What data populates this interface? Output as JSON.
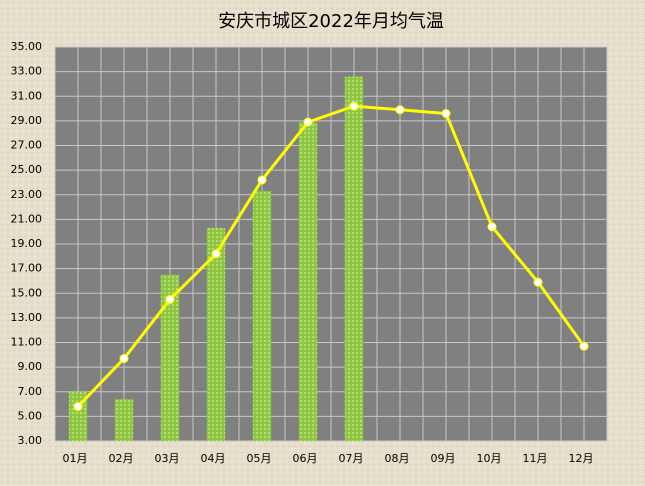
{
  "chart_data": {
    "type": "combo",
    "title": "安庆市城区2022年月均气温",
    "categories": [
      "01月",
      "02月",
      "03月",
      "04月",
      "05月",
      "06月",
      "07月",
      "08月",
      "09月",
      "10月",
      "11月",
      "12月"
    ],
    "series": [
      {
        "type": "bar",
        "color": "#8dc63f",
        "values": [
          7.0,
          6.4,
          16.5,
          20.3,
          23.3,
          28.9,
          32.6,
          null,
          null,
          null,
          null,
          null
        ]
      },
      {
        "type": "line",
        "color": "#ffff00",
        "values": [
          5.8,
          9.7,
          14.5,
          18.2,
          24.2,
          28.9,
          30.2,
          29.9,
          29.6,
          20.4,
          15.9,
          10.7
        ]
      }
    ],
    "ylim": [
      3,
      35
    ],
    "yticks": [
      {
        "value": 3,
        "label": "3.00"
      },
      {
        "value": 5,
        "label": "5.00"
      },
      {
        "value": 7,
        "label": "7.00"
      },
      {
        "value": 9,
        "label": "9.00"
      },
      {
        "value": 11,
        "label": "11.00"
      },
      {
        "value": 13,
        "label": "13.00"
      },
      {
        "value": 15,
        "label": "15.00"
      },
      {
        "value": 17,
        "label": "17.00"
      },
      {
        "value": 19,
        "label": "19.00"
      },
      {
        "value": 21,
        "label": "21.00"
      },
      {
        "value": 23,
        "label": "23.00"
      },
      {
        "value": 25,
        "label": "25.00"
      },
      {
        "value": 27,
        "label": "27.00"
      },
      {
        "value": 29,
        "label": "29.00"
      },
      {
        "value": 31,
        "label": "31.00"
      },
      {
        "value": 33,
        "label": "33.00"
      },
      {
        "value": 35,
        "label": "35.00"
      }
    ],
    "grid": true
  }
}
